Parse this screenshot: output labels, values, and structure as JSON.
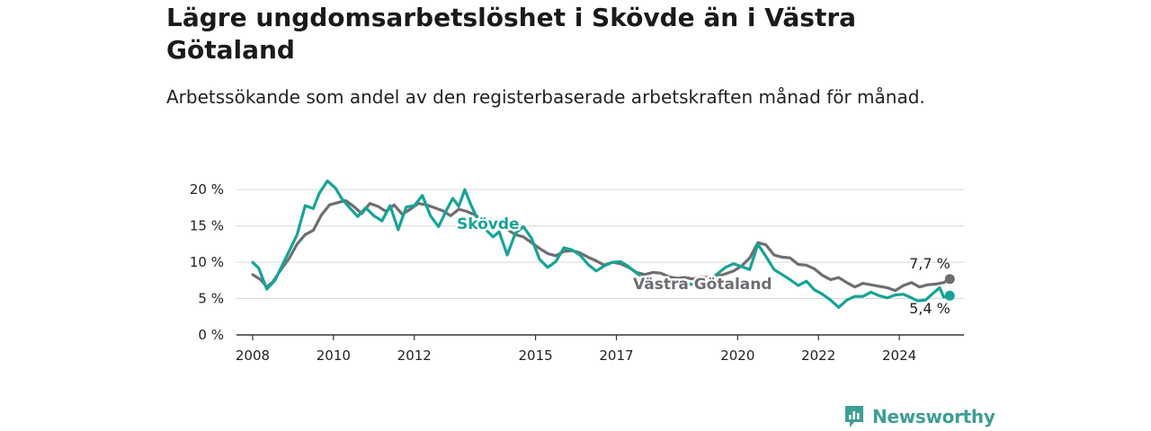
{
  "title": "Lägre ungdomsarbetslöshet i Skövde än i Västra Götaland",
  "subtitle": "Arbetssökande som andel av den registerbaserade arbetskraften månad för månad.",
  "brand": "Newsworthy",
  "chart_data": {
    "type": "line",
    "ylim": [
      0,
      22
    ],
    "xlim": [
      2007.6,
      2025.6
    ],
    "yticks": [
      0,
      5,
      10,
      15,
      20
    ],
    "ytick_labels": [
      "0 %",
      "5 %",
      "10 %",
      "15 %",
      "20 %"
    ],
    "xticks": [
      2008,
      2010,
      2012,
      2015,
      2017,
      2020,
      2022,
      2024
    ],
    "xtick_labels": [
      "2008",
      "2010",
      "2012",
      "2015",
      "2017",
      "2020",
      "2022",
      "2024"
    ],
    "grid": true,
    "series": [
      {
        "name": "Västra Götaland",
        "color": "#6f6d72",
        "end_label": "7,7 %",
        "points": [
          [
            2008.0,
            8.3
          ],
          [
            2008.2,
            7.6
          ],
          [
            2008.35,
            6.6
          ],
          [
            2008.5,
            7.3
          ],
          [
            2008.7,
            9.0
          ],
          [
            2008.9,
            10.5
          ],
          [
            2009.1,
            12.5
          ],
          [
            2009.3,
            13.8
          ],
          [
            2009.5,
            14.4
          ],
          [
            2009.7,
            16.5
          ],
          [
            2009.9,
            17.9
          ],
          [
            2010.1,
            18.2
          ],
          [
            2010.3,
            18.5
          ],
          [
            2010.5,
            17.7
          ],
          [
            2010.7,
            16.7
          ],
          [
            2010.9,
            18.1
          ],
          [
            2011.1,
            17.7
          ],
          [
            2011.3,
            17.0
          ],
          [
            2011.5,
            17.9
          ],
          [
            2011.7,
            16.6
          ],
          [
            2011.9,
            17.3
          ],
          [
            2012.1,
            18.1
          ],
          [
            2012.3,
            17.9
          ],
          [
            2012.5,
            17.5
          ],
          [
            2012.7,
            17.1
          ],
          [
            2012.9,
            16.4
          ],
          [
            2013.1,
            17.3
          ],
          [
            2013.3,
            17.0
          ],
          [
            2013.5,
            16.5
          ],
          [
            2013.7,
            15.8
          ],
          [
            2013.9,
            15.9
          ],
          [
            2014.1,
            15.0
          ],
          [
            2014.3,
            14.5
          ],
          [
            2014.5,
            13.8
          ],
          [
            2014.7,
            13.5
          ],
          [
            2014.9,
            12.7
          ],
          [
            2015.1,
            11.9
          ],
          [
            2015.3,
            11.2
          ],
          [
            2015.5,
            10.9
          ],
          [
            2015.7,
            11.5
          ],
          [
            2015.9,
            11.6
          ],
          [
            2016.1,
            11.3
          ],
          [
            2016.3,
            10.7
          ],
          [
            2016.5,
            10.2
          ],
          [
            2016.7,
            9.6
          ],
          [
            2016.9,
            10.0
          ],
          [
            2017.1,
            9.8
          ],
          [
            2017.3,
            9.3
          ],
          [
            2017.5,
            8.6
          ],
          [
            2017.7,
            8.3
          ],
          [
            2017.9,
            8.6
          ],
          [
            2018.1,
            8.5
          ],
          [
            2018.3,
            8.0
          ],
          [
            2018.5,
            7.8
          ],
          [
            2018.7,
            7.9
          ],
          [
            2018.9,
            7.7
          ],
          [
            2019.1,
            8.0
          ],
          [
            2019.3,
            7.9
          ],
          [
            2019.5,
            8.1
          ],
          [
            2019.7,
            8.4
          ],
          [
            2019.9,
            8.8
          ],
          [
            2020.1,
            9.5
          ],
          [
            2020.3,
            10.6
          ],
          [
            2020.5,
            12.7
          ],
          [
            2020.7,
            12.4
          ],
          [
            2020.9,
            11.0
          ],
          [
            2021.1,
            10.7
          ],
          [
            2021.3,
            10.6
          ],
          [
            2021.5,
            9.7
          ],
          [
            2021.7,
            9.6
          ],
          [
            2021.9,
            9.1
          ],
          [
            2022.1,
            8.2
          ],
          [
            2022.3,
            7.6
          ],
          [
            2022.5,
            7.9
          ],
          [
            2022.7,
            7.2
          ],
          [
            2022.9,
            6.6
          ],
          [
            2023.1,
            7.1
          ],
          [
            2023.3,
            6.9
          ],
          [
            2023.5,
            6.7
          ],
          [
            2023.7,
            6.5
          ],
          [
            2023.9,
            6.1
          ],
          [
            2024.1,
            6.8
          ],
          [
            2024.3,
            7.2
          ],
          [
            2024.5,
            6.6
          ],
          [
            2024.7,
            6.9
          ],
          [
            2024.9,
            7.0
          ],
          [
            2025.1,
            7.2
          ],
          [
            2025.25,
            7.7
          ]
        ]
      },
      {
        "name": "Skövde",
        "color": "#17a397",
        "end_label": "5,4 %",
        "points": [
          [
            2008.0,
            10.0
          ],
          [
            2008.15,
            9.2
          ],
          [
            2008.35,
            6.3
          ],
          [
            2008.55,
            7.5
          ],
          [
            2008.75,
            9.8
          ],
          [
            2008.9,
            11.5
          ],
          [
            2009.1,
            13.8
          ],
          [
            2009.3,
            17.8
          ],
          [
            2009.5,
            17.4
          ],
          [
            2009.65,
            19.5
          ],
          [
            2009.85,
            21.2
          ],
          [
            2010.05,
            20.2
          ],
          [
            2010.2,
            18.8
          ],
          [
            2010.4,
            17.5
          ],
          [
            2010.6,
            16.3
          ],
          [
            2010.8,
            17.5
          ],
          [
            2011.0,
            16.4
          ],
          [
            2011.2,
            15.7
          ],
          [
            2011.4,
            17.8
          ],
          [
            2011.6,
            14.5
          ],
          [
            2011.8,
            17.6
          ],
          [
            2012.0,
            17.8
          ],
          [
            2012.2,
            19.2
          ],
          [
            2012.4,
            16.4
          ],
          [
            2012.6,
            14.9
          ],
          [
            2012.8,
            17.2
          ],
          [
            2012.95,
            18.8
          ],
          [
            2013.1,
            17.7
          ],
          [
            2013.25,
            20.0
          ],
          [
            2013.4,
            17.9
          ],
          [
            2013.55,
            16.1
          ],
          [
            2013.75,
            14.6
          ],
          [
            2013.95,
            13.5
          ],
          [
            2014.1,
            14.2
          ],
          [
            2014.3,
            11.0
          ],
          [
            2014.5,
            14.0
          ],
          [
            2014.7,
            14.9
          ],
          [
            2014.9,
            13.3
          ],
          [
            2015.1,
            10.4
          ],
          [
            2015.3,
            9.3
          ],
          [
            2015.5,
            10.1
          ],
          [
            2015.7,
            12.0
          ],
          [
            2015.9,
            11.7
          ],
          [
            2016.1,
            11.0
          ],
          [
            2016.3,
            9.7
          ],
          [
            2016.5,
            8.8
          ],
          [
            2016.7,
            9.5
          ],
          [
            2016.9,
            10.0
          ],
          [
            2017.1,
            10.1
          ],
          [
            2017.3,
            9.4
          ],
          [
            2017.5,
            8.5
          ],
          [
            2017.7,
            7.8
          ],
          [
            2017.9,
            7.2
          ],
          [
            2018.1,
            7.5
          ],
          [
            2018.3,
            7.0
          ],
          [
            2018.5,
            6.8
          ],
          [
            2018.7,
            7.2
          ],
          [
            2018.9,
            6.9
          ],
          [
            2019.1,
            7.3
          ],
          [
            2019.3,
            7.6
          ],
          [
            2019.5,
            8.4
          ],
          [
            2019.7,
            9.3
          ],
          [
            2019.9,
            9.8
          ],
          [
            2020.1,
            9.4
          ],
          [
            2020.3,
            9.0
          ],
          [
            2020.5,
            12.5
          ],
          [
            2020.7,
            10.8
          ],
          [
            2020.9,
            9.0
          ],
          [
            2021.1,
            8.3
          ],
          [
            2021.3,
            7.6
          ],
          [
            2021.5,
            6.8
          ],
          [
            2021.7,
            7.4
          ],
          [
            2021.9,
            6.2
          ],
          [
            2022.1,
            5.6
          ],
          [
            2022.3,
            4.8
          ],
          [
            2022.5,
            3.8
          ],
          [
            2022.7,
            4.8
          ],
          [
            2022.9,
            5.3
          ],
          [
            2023.1,
            5.3
          ],
          [
            2023.3,
            5.9
          ],
          [
            2023.5,
            5.4
          ],
          [
            2023.7,
            5.1
          ],
          [
            2023.9,
            5.5
          ],
          [
            2024.1,
            5.6
          ],
          [
            2024.3,
            5.1
          ],
          [
            2024.45,
            4.7
          ],
          [
            2024.65,
            4.8
          ],
          [
            2024.85,
            5.8
          ],
          [
            2025.0,
            6.5
          ],
          [
            2025.1,
            5.2
          ],
          [
            2025.25,
            5.4
          ]
        ]
      }
    ]
  }
}
